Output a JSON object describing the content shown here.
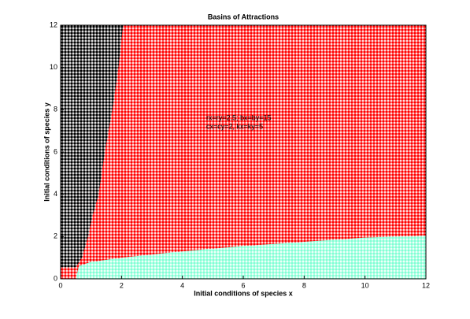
{
  "chart_data": {
    "type": "region",
    "title": "Basins of Attractions",
    "xlabel": "Initial conditions of species x",
    "ylabel": "Initial conditions of species y",
    "annotations": [
      "rx=ry=2.5; bx=by=15",
      "cx=cy=2, kx=ky=5"
    ],
    "background_color": "#ff0000",
    "xlim": [
      0,
      12
    ],
    "ylim": [
      0,
      12
    ],
    "xticks": [
      0,
      2,
      4,
      6,
      8,
      10,
      12
    ],
    "yticks": [
      0,
      2,
      4,
      6,
      8,
      10,
      12
    ],
    "series": [
      {
        "color": "#000000",
        "x": [
          0,
          2.05,
          1.9,
          1.7,
          1.45,
          1.25,
          1.05,
          0.9,
          0.7,
          0.5,
          0
        ],
        "values": [
          12,
          12,
          10,
          8,
          6,
          4,
          3,
          2,
          1,
          0.55,
          0.55
        ]
      },
      {
        "color": "#7fffd4",
        "x": [
          0.5,
          0.6,
          1,
          2,
          4,
          6,
          8,
          10,
          12,
          12,
          0.5
        ],
        "values": [
          0,
          0.6,
          0.8,
          1.0,
          1.3,
          1.55,
          1.75,
          1.95,
          2.05,
          0,
          0
        ]
      }
    ]
  }
}
